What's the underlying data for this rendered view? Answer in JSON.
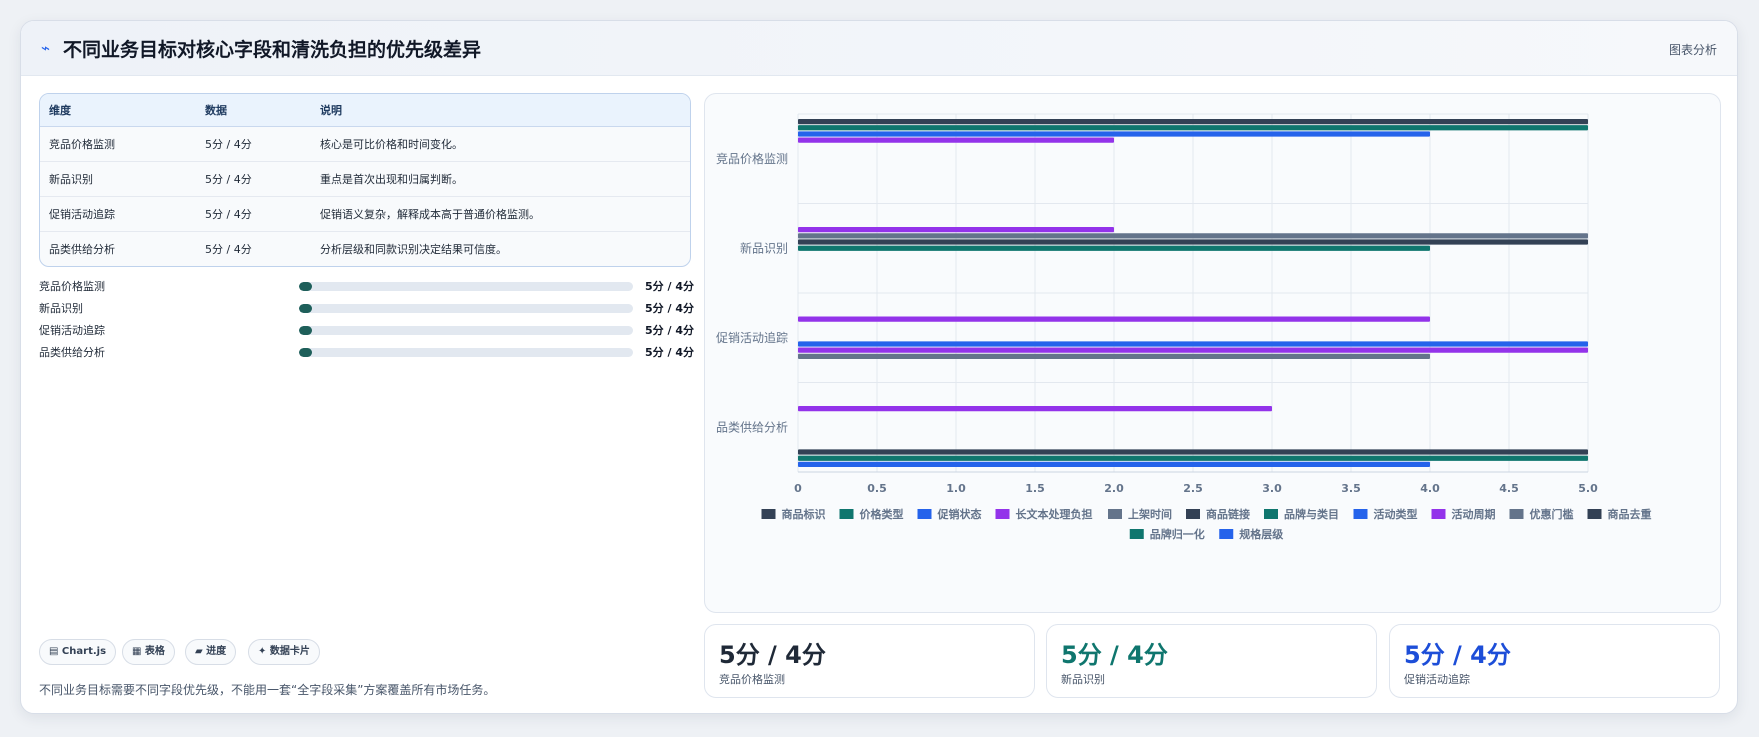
{
  "header": {
    "icon": "activity-icon",
    "title": "不同业务目标对核心字段和清洗负担的优先级差异",
    "right_label": "图表分析"
  },
  "table": {
    "columns": [
      "维度",
      "数据",
      "说明"
    ],
    "rows": [
      [
        "竞品价格监测",
        "5分 / 4分",
        "核心是可比价格和时间变化。"
      ],
      [
        "新品识别",
        "5分 / 4分",
        "重点是首次出现和归属判断。"
      ],
      [
        "促销活动追踪",
        "5分 / 4分",
        "促销语义复杂，解释成本高于普通价格监测。"
      ],
      [
        "品类供给分析",
        "5分 / 4分",
        "分析层级和同款识别决定结果可信度。"
      ]
    ]
  },
  "progress": [
    {
      "label": "竞品价格监测",
      "value": "5分 / 4分",
      "fill": 0.04
    },
    {
      "label": "新品识别",
      "value": "5分 / 4分",
      "fill": 0.04
    },
    {
      "label": "促销活动追踪",
      "value": "5分 / 4分",
      "fill": 0.04
    },
    {
      "label": "品类供给分析",
      "value": "5分 / 4分",
      "fill": 0.04
    }
  ],
  "pills": [
    {
      "icon": "chart-icon",
      "label": "▤ Chart.js"
    },
    {
      "icon": "table-icon",
      "label": "▦ 表格"
    },
    {
      "icon": "progress-icon",
      "label": "▰ 进度"
    },
    {
      "icon": "card-icon",
      "label": "✦ 数据卡片"
    }
  ],
  "footnote": "不同业务目标需要不同字段优先级，不能用一套“全字段采集”方案覆盖所有市场任务。",
  "stats": [
    {
      "value": "5分 / 4分",
      "label": "竞品价格监测",
      "color": "#1f2937"
    },
    {
      "value": "5分 / 4分",
      "label": "新品识别",
      "color": "#0f766e"
    },
    {
      "value": "5分 / 4分",
      "label": "促销活动追踪",
      "color": "#1d4ed8"
    }
  ],
  "chart_data": {
    "type": "bar",
    "orientation": "horizontal",
    "categories": [
      "竞品价格监测",
      "新品识别",
      "促销活动追踪",
      "品类供给分析"
    ],
    "xlim": [
      0,
      5
    ],
    "xticks": [
      "0",
      "0.5",
      "1.0",
      "1.5",
      "2.0",
      "2.5",
      "3.0",
      "3.5",
      "4.0",
      "4.5",
      "5.0"
    ],
    "grid": true,
    "legend_position": "bottom",
    "series": [
      {
        "name": "商品标识",
        "color": "#334155",
        "values": [
          5,
          null,
          null,
          null
        ]
      },
      {
        "name": "价格类型",
        "color": "#0f766e",
        "values": [
          5,
          null,
          null,
          null
        ]
      },
      {
        "name": "促销状态",
        "color": "#2563eb",
        "values": [
          4,
          null,
          null,
          null
        ]
      },
      {
        "name": "长文本处理负担",
        "color": "#9333ea",
        "values": [
          2,
          2,
          4,
          3
        ]
      },
      {
        "name": "上架时间",
        "color": "#64748b",
        "values": [
          null,
          5,
          null,
          null
        ]
      },
      {
        "name": "商品链接",
        "color": "#334155",
        "values": [
          null,
          5,
          null,
          null
        ]
      },
      {
        "name": "品牌与类目",
        "color": "#0f766e",
        "values": [
          null,
          4,
          null,
          null
        ]
      },
      {
        "name": "活动类型",
        "color": "#2563eb",
        "values": [
          null,
          null,
          5,
          null
        ]
      },
      {
        "name": "活动周期",
        "color": "#9333ea",
        "values": [
          null,
          null,
          5,
          null
        ]
      },
      {
        "name": "优惠门槛",
        "color": "#64748b",
        "values": [
          null,
          null,
          4,
          null
        ]
      },
      {
        "name": "商品去重",
        "color": "#334155",
        "values": [
          null,
          null,
          null,
          5
        ]
      },
      {
        "name": "品牌归一化",
        "color": "#0f766e",
        "values": [
          null,
          null,
          null,
          5
        ]
      },
      {
        "name": "规格层级",
        "color": "#2563eb",
        "values": [
          null,
          null,
          null,
          4
        ]
      }
    ]
  }
}
